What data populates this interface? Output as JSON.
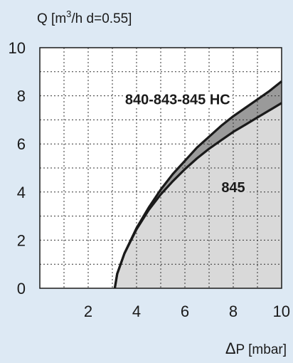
{
  "chart_data": {
    "type": "line",
    "ylabel": {
      "prefix": "Q [m",
      "sup": "3",
      "suffix": "/h  d=0.55]"
    },
    "xlabel": {
      "symbol": "Δ",
      "text": "P [mbar]"
    },
    "xlim": [
      0,
      10
    ],
    "ylim": [
      0,
      10
    ],
    "xticks": [
      2,
      4,
      6,
      8,
      10
    ],
    "yticks": [
      0,
      2,
      4,
      6,
      8,
      10
    ],
    "grid": true,
    "series": [
      {
        "name": "840-843-845 HC",
        "x": [
          3.1,
          3.2,
          3.5,
          4.0,
          4.5,
          5.0,
          5.5,
          6.0,
          6.5,
          7.0,
          7.5,
          8.0,
          8.5,
          9.0,
          9.5,
          10.0
        ],
        "y": [
          0.0,
          0.6,
          1.45,
          2.5,
          3.35,
          4.1,
          4.75,
          5.3,
          5.85,
          6.3,
          6.75,
          7.15,
          7.5,
          7.85,
          8.2,
          8.6
        ]
      },
      {
        "name": "845",
        "x": [
          3.1,
          3.2,
          3.5,
          4.0,
          4.5,
          5.0,
          5.5,
          6.0,
          6.5,
          7.0,
          7.5,
          8.0,
          8.5,
          9.0,
          9.5,
          10.0
        ],
        "y": [
          0.0,
          0.6,
          1.45,
          2.45,
          3.25,
          3.9,
          4.45,
          4.95,
          5.4,
          5.8,
          6.15,
          6.5,
          6.8,
          7.1,
          7.4,
          7.7
        ]
      }
    ],
    "annotations": [
      {
        "text": "840-843-845 HC",
        "x": 5.7,
        "y": 7.85
      },
      {
        "text": "845",
        "x": 8.0,
        "y": 4.2
      }
    ],
    "colors": {
      "background": "#dde9f4",
      "plot_area": "#ffffff",
      "fill_under": "#d9d9d9",
      "fill_between": "#9a9a9a",
      "curve": "#1a1a1a"
    }
  }
}
